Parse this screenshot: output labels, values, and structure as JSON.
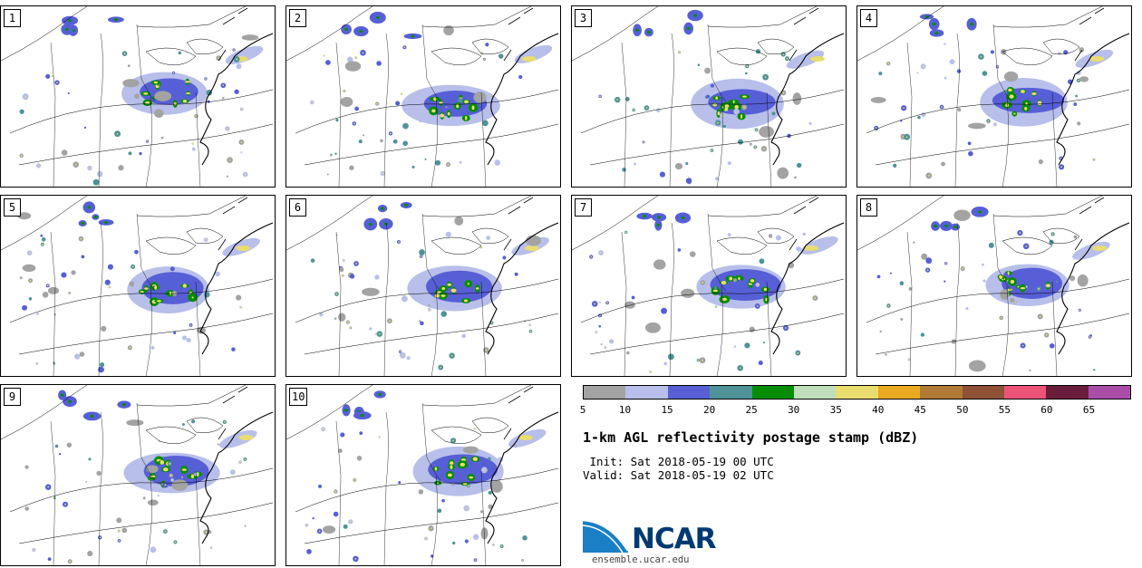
{
  "panels": [
    {
      "label": "1"
    },
    {
      "label": "2"
    },
    {
      "label": "3"
    },
    {
      "label": "4"
    },
    {
      "label": "5"
    },
    {
      "label": "6"
    },
    {
      "label": "7"
    },
    {
      "label": "8"
    },
    {
      "label": "9"
    },
    {
      "label": "10"
    }
  ],
  "colorbar": {
    "colors": [
      "#a3a3a3",
      "#b8bfea",
      "#575fd6",
      "#4f9398",
      "#058d05",
      "#bfdfbb",
      "#eadd70",
      "#eaa921",
      "#b17b37",
      "#8f5236",
      "#ec5377",
      "#6a1d3a",
      "#a94da9"
    ],
    "ticks": [
      "5",
      "10",
      "15",
      "20",
      "25",
      "30",
      "35",
      "40",
      "45",
      "50",
      "55",
      "60",
      "65"
    ]
  },
  "title": "1-km AGL reflectivity postage stamp (dBZ)",
  "init": " Init: Sat 2018-05-19 00 UTC",
  "valid": "Valid: Sat 2018-05-19 02 UTC",
  "logo": {
    "text": "NCAR",
    "url": "ensemble.ucar.edu",
    "color": "#003a70"
  }
}
